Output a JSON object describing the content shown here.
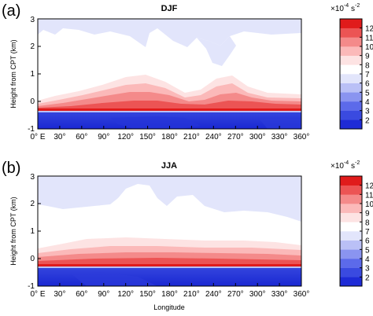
{
  "chart_data": [
    {
      "type": "heatmap",
      "panel_label": "(a)",
      "title": "DJF",
      "xlabel": "",
      "ylabel": "Height from CPT (km)",
      "x_ticks": [
        "0° E",
        "30°",
        "60°",
        "90°",
        "120°",
        "150°",
        "180°",
        "210°",
        "240°",
        "270°",
        "300°",
        "330°",
        "360°"
      ],
      "xlim": [
        0,
        360
      ],
      "y_ticks": [
        "-1",
        "0",
        "1",
        "2",
        "3"
      ],
      "ylim": [
        -1,
        3
      ],
      "colorbar": {
        "unit_base": "×10",
        "unit_exp1": "-4",
        "unit_mid": " s",
        "unit_exp2": "-2",
        "levels": [
          "2",
          "3",
          "4",
          "5",
          "6",
          "7",
          "8",
          "9",
          "10",
          "11",
          "12"
        ],
        "colors": [
          "#1e2bd6",
          "#3a4ae0",
          "#5c6aea",
          "#8a94f0",
          "#bac0f6",
          "#e2e5fb",
          "#ffffff",
          "#fde3e3",
          "#fbb9b9",
          "#f48a8a",
          "#ec5454",
          "#e01b1b"
        ]
      },
      "fields": {
        "upper_level_lavender": "#e2e5fb",
        "lower_layer_blue": "#1e2bd6",
        "near_cpt_peak_red": "#e01b1b"
      },
      "profile_samples": {
        "x": [
          0,
          60,
          120,
          180,
          240,
          300,
          360
        ],
        "red_layer_top_km": [
          0.45,
          0.5,
          0.8,
          0.95,
          0.5,
          0.85,
          0.5
        ]
      }
    },
    {
      "type": "heatmap",
      "panel_label": "(b)",
      "title": "JJA",
      "xlabel": "Longitude",
      "ylabel": "Height from CPT (km)",
      "x_ticks": [
        "0° E",
        "30°",
        "60°",
        "90°",
        "120°",
        "150°",
        "180°",
        "210°",
        "240°",
        "270°",
        "300°",
        "330°",
        "360°"
      ],
      "xlim": [
        0,
        360
      ],
      "y_ticks": [
        "-1",
        "0",
        "1",
        "2",
        "3"
      ],
      "ylim": [
        -1,
        3
      ],
      "colorbar": {
        "unit_base": "×10",
        "unit_exp1": "-4",
        "unit_mid": " s",
        "unit_exp2": "-2",
        "levels": [
          "2",
          "3",
          "4",
          "5",
          "6",
          "7",
          "8",
          "9",
          "10",
          "11",
          "12"
        ],
        "colors": [
          "#1e2bd6",
          "#3a4ae0",
          "#5c6aea",
          "#8a94f0",
          "#bac0f6",
          "#e2e5fb",
          "#ffffff",
          "#fde3e3",
          "#fbb9b9",
          "#f48a8a",
          "#ec5454",
          "#e01b1b"
        ]
      },
      "fields": {
        "upper_level_lavender": "#e2e5fb",
        "lower_layer_blue": "#1e2bd6",
        "near_cpt_peak_red": "#e01b1b"
      },
      "profile_samples": {
        "x": [
          0,
          60,
          120,
          180,
          240,
          300,
          360
        ],
        "red_layer_top_km": [
          0.5,
          0.55,
          0.6,
          0.6,
          0.55,
          0.55,
          0.5
        ]
      }
    }
  ]
}
